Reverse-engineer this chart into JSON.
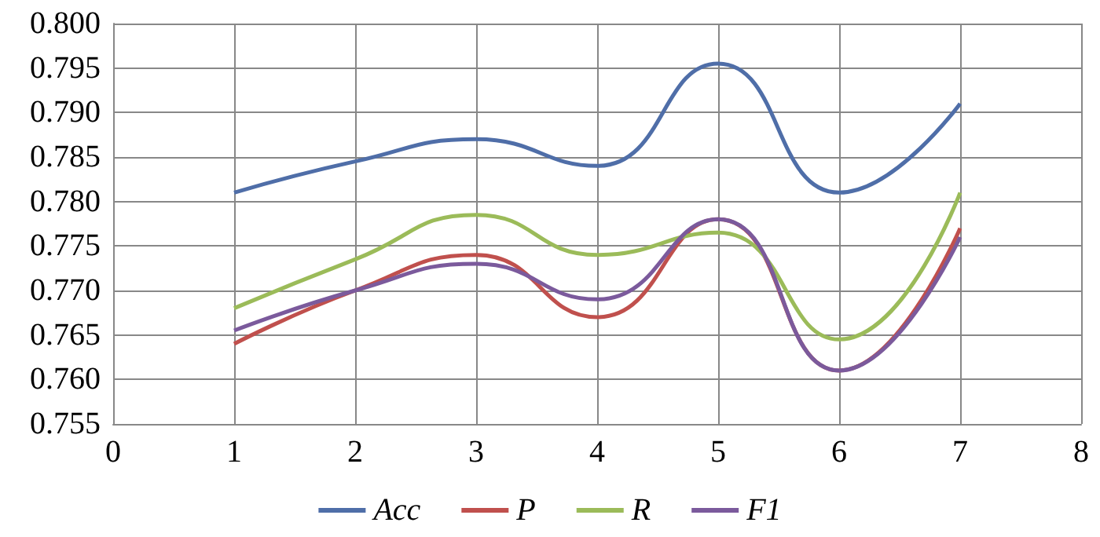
{
  "chart_data": {
    "type": "line",
    "x": [
      1,
      2,
      3,
      4,
      5,
      6,
      7
    ],
    "series": [
      {
        "name": "Acc",
        "color": "#4f6ea8",
        "values": [
          0.781,
          0.7845,
          0.787,
          0.784,
          0.7955,
          0.781,
          0.791
        ]
      },
      {
        "name": "P",
        "color": "#c0504d",
        "values": [
          0.764,
          0.77,
          0.774,
          0.767,
          0.778,
          0.761,
          0.777
        ]
      },
      {
        "name": "R",
        "color": "#9bbb59",
        "values": [
          0.768,
          0.7735,
          0.7785,
          0.774,
          0.7765,
          0.7645,
          0.781
        ]
      },
      {
        "name": "F1",
        "color": "#7b5a9c",
        "values": [
          0.7655,
          0.77,
          0.773,
          0.769,
          0.778,
          0.761,
          0.776
        ]
      }
    ],
    "xlim": [
      0,
      8
    ],
    "xticks": [
      0,
      1,
      2,
      3,
      4,
      5,
      6,
      7,
      8
    ],
    "ylim": [
      0.755,
      0.8
    ],
    "yticks": [
      {
        "value": 0.755,
        "label": "0.755"
      },
      {
        "value": 0.76,
        "label": "0.760"
      },
      {
        "value": 0.765,
        "label": "0.765"
      },
      {
        "value": 0.77,
        "label": "0.770"
      },
      {
        "value": 0.775,
        "label": "0.775"
      },
      {
        "value": 0.78,
        "label": "0.780"
      },
      {
        "value": 0.785,
        "label": "0.785"
      },
      {
        "value": 0.79,
        "label": "0.790"
      },
      {
        "value": 0.795,
        "label": "0.795"
      },
      {
        "value": 0.8,
        "label": "0.800"
      }
    ],
    "grid": true,
    "legend": "bottom",
    "marker": "none",
    "line_style": "solid"
  }
}
